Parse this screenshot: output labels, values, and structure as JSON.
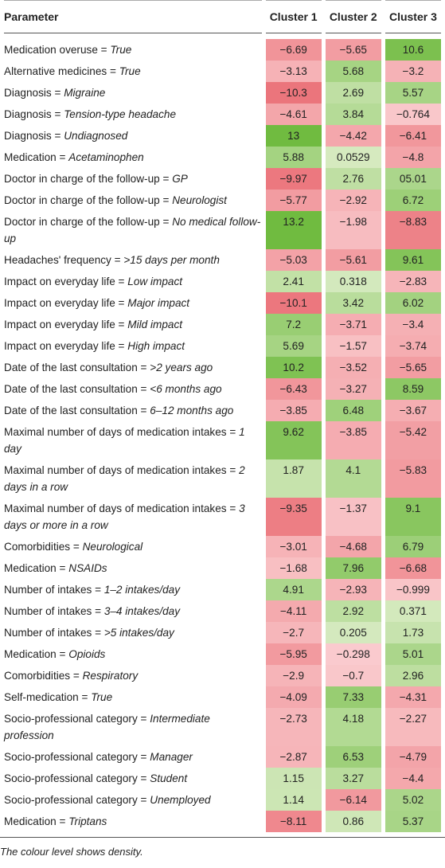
{
  "header": {
    "parameter": "Parameter",
    "clusters": [
      "Cluster 1",
      "Cluster 2",
      "Cluster 3"
    ]
  },
  "rows": [
    {
      "param": "Medication overuse =",
      "level": "True",
      "values": [
        "−6.69",
        "−5.65",
        "10.6"
      ]
    },
    {
      "param": "Alternative medicines =",
      "level": "True",
      "values": [
        "−3.13",
        "5.68",
        "−3.2"
      ]
    },
    {
      "param": "Diagnosis =",
      "level": "Migraine",
      "values": [
        "−10.3",
        "2.69",
        "5.57"
      ]
    },
    {
      "param": "Diagnosis =",
      "level": "Tension-type headache",
      "values": [
        "−4.61",
        "3.84",
        "−0.764"
      ]
    },
    {
      "param": "Diagnosis =",
      "level": "Undiagnosed",
      "values": [
        "13",
        "−4.42",
        "−6.41"
      ]
    },
    {
      "param": "Medication =",
      "level": "Acetaminophen",
      "values": [
        "5.88",
        "0.0529",
        "−4.8"
      ]
    },
    {
      "param": "Doctor in charge of the follow-up =",
      "level": "GP",
      "values": [
        "−9.97",
        "2.76",
        "05.01"
      ]
    },
    {
      "param": "Doctor in charge of the follow-up =",
      "level": "Neurologist",
      "values": [
        "−5.77",
        "−2.92",
        "6.72"
      ]
    },
    {
      "param": "Doctor in charge of the follow-up =",
      "level": "No medical follow-up",
      "values": [
        "13.2",
        "−1.98",
        "−8.83"
      ]
    },
    {
      "param": "Headaches' frequency =",
      "level": ">15 days per month",
      "values": [
        "−5.03",
        "−5.61",
        "9.61"
      ]
    },
    {
      "param": "Impact on everyday life =",
      "level": "Low impact",
      "values": [
        "2.41",
        "0.318",
        "−2.83"
      ]
    },
    {
      "param": "Impact on everyday life =",
      "level": "Major impact",
      "values": [
        "−10.1",
        "3.42",
        "6.02"
      ]
    },
    {
      "param": "Impact on everyday life =",
      "level": "Mild impact",
      "values": [
        "7.2",
        "−3.71",
        "−3.4"
      ]
    },
    {
      "param": "Impact on everyday life =",
      "level": "High impact",
      "values": [
        "5.69",
        "−1.57",
        "−3.74"
      ]
    },
    {
      "param": "Date of the last consultation =",
      "level": ">2 years ago",
      "values": [
        "10.2",
        "−3.52",
        "−5.65"
      ]
    },
    {
      "param": "Date of the last consultation =",
      "level": "<6 months ago",
      "values": [
        "−6.43",
        "−3.27",
        "8.59"
      ]
    },
    {
      "param": "Date of the last consultation =",
      "level": "6–12 months ago",
      "values": [
        "−3.85",
        "6.48",
        "−3.67"
      ]
    },
    {
      "param": "Maximal number of days of medication intakes =",
      "level": "1 day",
      "values": [
        "9.62",
        "−3.85",
        "−5.42"
      ]
    },
    {
      "param": "Maximal number of days of medication intakes =",
      "level": "2 days in a row",
      "values": [
        "1.87",
        "4.1",
        "−5.83"
      ]
    },
    {
      "param": "Maximal number of days of medication intakes =",
      "level": "3 days or more in a row",
      "values": [
        "−9.35",
        "−1.37",
        "9.1"
      ]
    },
    {
      "param": "Comorbidities =",
      "level": "Neurological",
      "values": [
        "−3.01",
        "−4.68",
        "6.79"
      ]
    },
    {
      "param": "Medication =",
      "level": "NSAIDs",
      "values": [
        "−1.68",
        "7.96",
        "−6.68"
      ]
    },
    {
      "param": "Number of intakes =",
      "level": "1–2 intakes/day",
      "values": [
        "4.91",
        "−2.93",
        "−0.999"
      ]
    },
    {
      "param": "Number of intakes =",
      "level": "3–4 intakes/day",
      "values": [
        "−4.11",
        "2.92",
        "0.371"
      ]
    },
    {
      "param": "Number of intakes =",
      "level": ">5 intakes/day",
      "values": [
        "−2.7",
        "0.205",
        "1.73"
      ]
    },
    {
      "param": "Medication =",
      "level": "Opioids",
      "values": [
        "−5.95",
        "−0.298",
        "5.01"
      ]
    },
    {
      "param": "Comorbidities =",
      "level": "Respiratory",
      "values": [
        "−2.9",
        "−0.7",
        "2.96"
      ]
    },
    {
      "param": "Self-medication =",
      "level": "True",
      "values": [
        "−4.09",
        "7.33",
        "−4.31"
      ]
    },
    {
      "param": "Socio-professional category =",
      "level": "Intermediate profession",
      "values": [
        "−2.73",
        "4.18",
        "−2.27"
      ]
    },
    {
      "param": "Socio-professional category =",
      "level": "Manager",
      "values": [
        "−2.87",
        "6.53",
        "−4.79"
      ]
    },
    {
      "param": "Socio-professional category =",
      "level": "Student",
      "values": [
        "1.15",
        "3.27",
        "−4.4"
      ]
    },
    {
      "param": "Socio-professional category =",
      "level": "Unemployed",
      "values": [
        "1.14",
        "−6.14",
        "5.02"
      ]
    },
    {
      "param": "Medication =",
      "level": "Triptans",
      "values": [
        "−8.11",
        "0.86",
        "5.37"
      ]
    }
  ],
  "footnote": "The colour level shows density."
}
